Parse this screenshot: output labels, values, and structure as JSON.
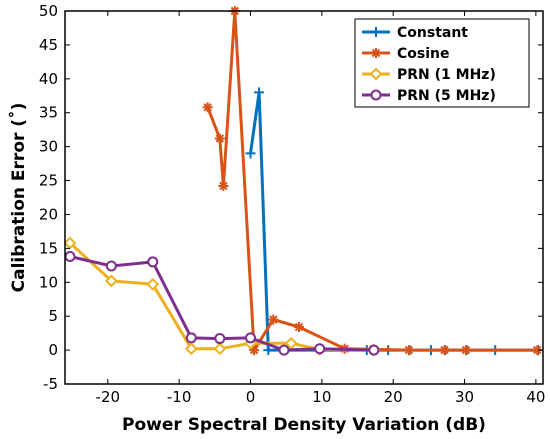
{
  "chart_data": {
    "type": "line",
    "xlabel": "Power Spectral Density Variation (dB)",
    "ylabel": "Calibration Error (˚)",
    "xlim": [
      -26,
      41
    ],
    "ylim": [
      -5,
      50
    ],
    "xticks": [
      -20,
      -10,
      0,
      10,
      20,
      30,
      40
    ],
    "xtick_labels": [
      "-20",
      "-10",
      "0",
      "10",
      "20",
      "30",
      "40"
    ],
    "yticks": [
      -5,
      0,
      5,
      10,
      15,
      20,
      25,
      30,
      35,
      40,
      45,
      50
    ],
    "ytick_labels": [
      "-5",
      "0",
      "5",
      "10",
      "15",
      "20",
      "25",
      "30",
      "35",
      "40",
      "45",
      "50"
    ],
    "grid": false,
    "legend_position": "top-right",
    "series": [
      {
        "name": "Constant",
        "color": "#0072BD",
        "marker": "plus",
        "x": [
          0,
          1.2,
          2.5,
          16.3,
          19.3,
          22.3,
          25.3,
          27.3,
          30.3,
          34.3,
          40.3
        ],
        "y": [
          29,
          38,
          0,
          0,
          0,
          0,
          0,
          0,
          0,
          0,
          0
        ]
      },
      {
        "name": "Cosine",
        "color": "#D95319",
        "marker": "star",
        "x": [
          -6,
          -4.3,
          -3.8,
          -2.2,
          0.5,
          3.2,
          6.8,
          13.2,
          17.2,
          22.2,
          27.2,
          30.2,
          40.2
        ],
        "y": [
          35.8,
          31.2,
          24.2,
          50,
          0,
          4.5,
          3.4,
          0.2,
          0.1,
          0,
          0,
          0,
          0
        ]
      },
      {
        "name": "PRN (1 MHz)",
        "color": "#EDB120",
        "marker": "diamond",
        "x": [
          -25.3,
          -19.5,
          -13.7,
          -8.3,
          -4.3,
          0,
          5.7,
          9.7,
          17.3
        ],
        "y": [
          15.8,
          10.2,
          9.7,
          0.2,
          0.2,
          1,
          1,
          0.1,
          0
        ]
      },
      {
        "name": "PRN (5 MHz)",
        "color": "#7E2F8E",
        "marker": "circle",
        "x": [
          -25.3,
          -19.5,
          -13.7,
          -8.3,
          -4.3,
          0,
          4.7,
          9.7,
          17.3
        ],
        "y": [
          13.8,
          12.4,
          13,
          1.8,
          1.7,
          1.8,
          0,
          0.2,
          0
        ]
      }
    ]
  }
}
